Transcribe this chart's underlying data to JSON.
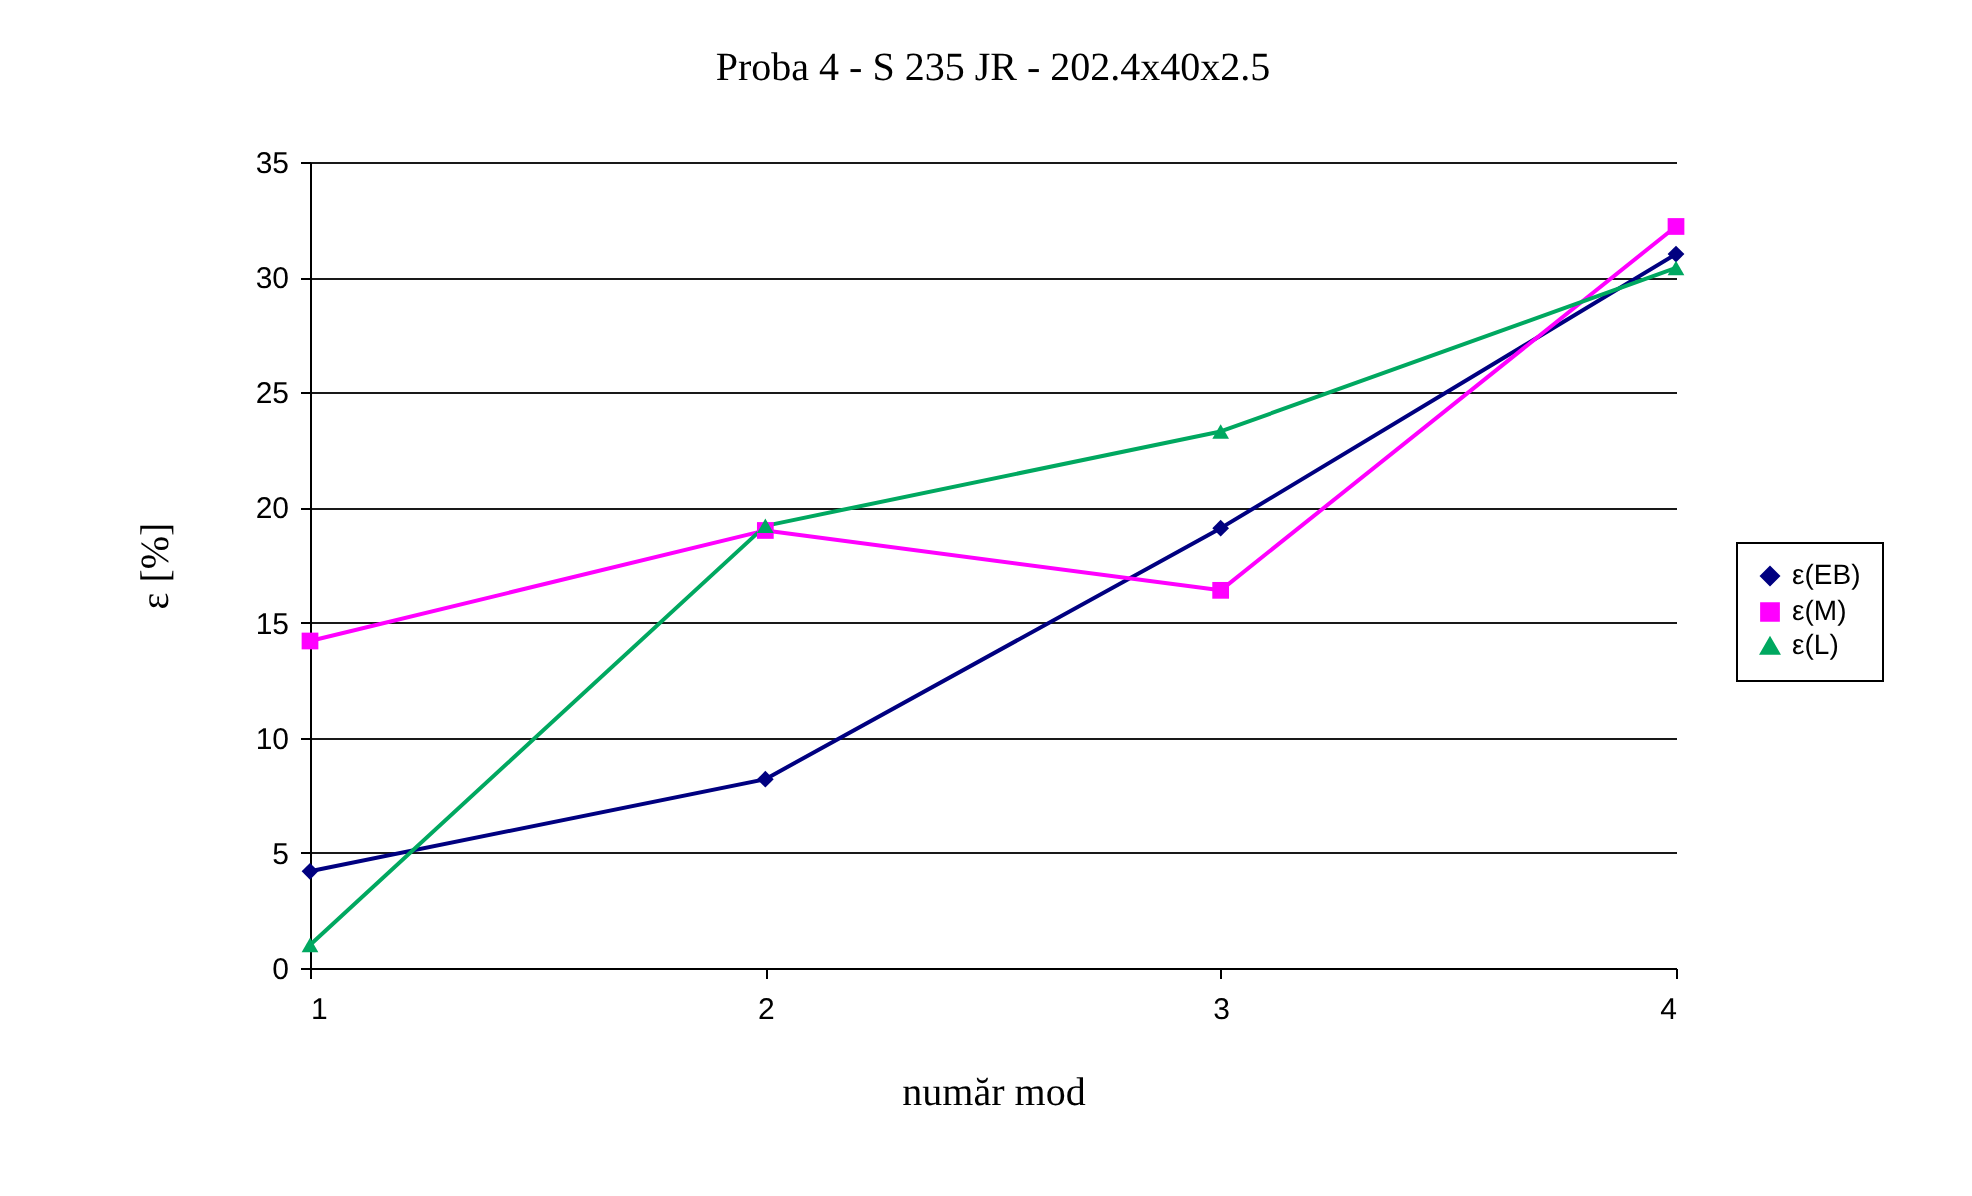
{
  "chart_data": {
    "type": "line",
    "title": "Proba 4 - S 235 JR - 202.4x40x2.5",
    "xlabel": "număr mod",
    "ylabel": "ε [%]",
    "x": [
      1,
      2,
      3,
      4
    ],
    "xlim": [
      1,
      4
    ],
    "xticks": [
      1,
      2,
      3,
      4
    ],
    "ylim": [
      0,
      35
    ],
    "yticks": [
      0,
      5,
      10,
      15,
      20,
      25,
      30,
      35
    ],
    "grid": "y",
    "legend": "right",
    "line_style": "solid",
    "series": [
      {
        "name": "ε(EB)",
        "color": "#000080",
        "marker": "diamond",
        "values": [
          4.2,
          8.2,
          19.1,
          31.0
        ]
      },
      {
        "name": "ε(M)",
        "color": "#ff00ff",
        "marker": "square",
        "values": [
          14.2,
          19.0,
          16.4,
          32.2
        ]
      },
      {
        "name": "ε(L)",
        "color": "#00a860",
        "marker": "triangle",
        "values": [
          1.0,
          19.2,
          23.3,
          30.4
        ]
      }
    ]
  }
}
